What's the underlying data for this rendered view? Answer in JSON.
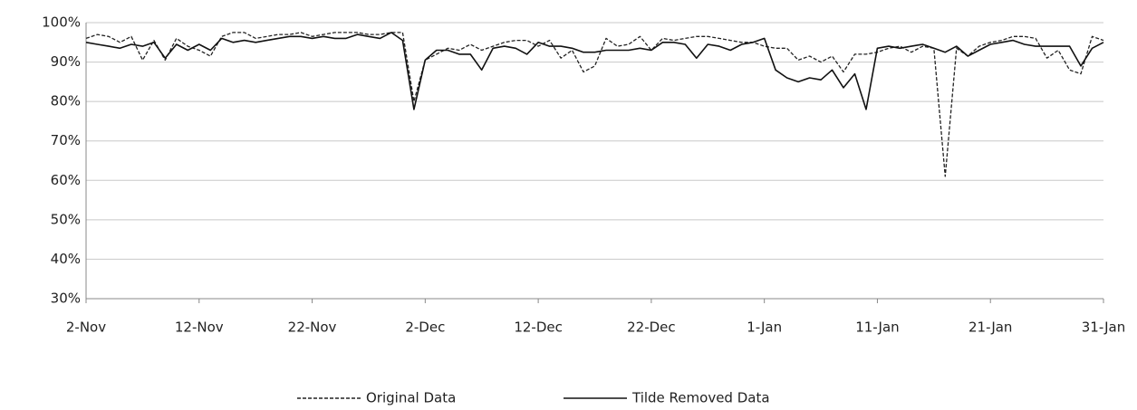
{
  "chart_data": {
    "type": "line",
    "categories": [
      "2-Nov",
      null,
      null,
      null,
      null,
      null,
      null,
      null,
      null,
      null,
      "12-Nov",
      null,
      null,
      null,
      null,
      null,
      null,
      null,
      null,
      null,
      "22-Nov",
      null,
      null,
      null,
      null,
      null,
      null,
      null,
      null,
      null,
      "2-Dec",
      null,
      null,
      null,
      null,
      null,
      null,
      null,
      null,
      null,
      "12-Dec",
      null,
      null,
      null,
      null,
      null,
      null,
      null,
      null,
      null,
      "22-Dec",
      null,
      null,
      null,
      null,
      null,
      null,
      null,
      null,
      null,
      "1-Jan",
      null,
      null,
      null,
      null,
      null,
      null,
      null,
      null,
      null,
      "11-Jan",
      null,
      null,
      null,
      null,
      null,
      null,
      null,
      null,
      null,
      "21-Jan",
      null,
      null,
      null,
      null,
      null,
      null,
      null,
      null,
      null,
      "31-Jan"
    ],
    "series": [
      {
        "name": "Original Data",
        "color": "#222222",
        "dash": "dashed",
        "values": [
          96,
          97,
          96.5,
          95,
          96.5,
          90.5,
          95.5,
          90.5,
          96,
          94,
          93,
          91.5,
          96.5,
          97.5,
          97.5,
          96,
          96.5,
          97,
          97,
          97.5,
          96.5,
          97,
          97.5,
          97.5,
          97.5,
          97,
          97,
          97.5,
          97.5,
          80,
          90.5,
          92,
          93.5,
          93,
          94.5,
          93,
          94,
          95,
          95.5,
          95.5,
          94,
          95.5,
          91,
          93,
          87.5,
          89,
          96,
          94,
          94.5,
          96.5,
          93,
          96,
          95.5,
          96,
          96.5,
          96.5,
          96,
          95.5,
          95,
          95,
          94,
          93.5,
          93.5,
          90.5,
          91.5,
          90,
          91.5,
          87.5,
          92,
          92,
          92.5,
          93.5,
          94,
          92.5,
          94,
          93.5,
          61,
          93.5,
          91.5,
          94,
          95,
          95.5,
          96.5,
          96.5,
          96,
          91,
          93,
          88,
          87,
          96.5,
          95.5
        ]
      },
      {
        "name": "Tilde Removed Data",
        "color": "#111111",
        "dash": "solid",
        "values": [
          95,
          94.5,
          94,
          93.5,
          94.5,
          94,
          95,
          91,
          94.5,
          93,
          94.5,
          93,
          96,
          95,
          95.5,
          95,
          95.5,
          96,
          96.5,
          96.5,
          96,
          96.5,
          96,
          96,
          97,
          96.5,
          96,
          97.5,
          95.5,
          78,
          90.5,
          93,
          93,
          92,
          92,
          88,
          93.5,
          94,
          93.5,
          92,
          95,
          94,
          94,
          93.5,
          92.5,
          92.5,
          93,
          93,
          93,
          93.5,
          93,
          95,
          95,
          94.5,
          91,
          94.5,
          94,
          93,
          94.5,
          95,
          96,
          88,
          86,
          85,
          86,
          85.5,
          88,
          83.5,
          87,
          78,
          93.5,
          94,
          93.5,
          94,
          94.5,
          93.5,
          92.5,
          94,
          91.5,
          93,
          94.5,
          95,
          95.5,
          94.5,
          94,
          94,
          94,
          94,
          89,
          93.5,
          95
        ]
      }
    ],
    "ylim": [
      30,
      100
    ],
    "yticks": [
      {
        "value": 30,
        "label": "30%"
      },
      {
        "value": 40,
        "label": "40%"
      },
      {
        "value": 50,
        "label": "50%"
      },
      {
        "value": 60,
        "label": "60%"
      },
      {
        "value": 70,
        "label": "70%"
      },
      {
        "value": 80,
        "label": "80%"
      },
      {
        "value": 90,
        "label": "90%"
      },
      {
        "value": 100,
        "label": "100%"
      }
    ],
    "grid": true,
    "legend": "bottom"
  }
}
